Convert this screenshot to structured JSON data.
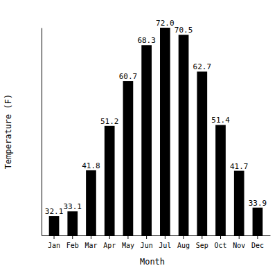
{
  "chart_data": {
    "type": "bar",
    "x_label": "Month",
    "y_label": "Temperature (F)",
    "categories": [
      "Jan",
      "Feb",
      "Mar",
      "Apr",
      "May",
      "Jun",
      "Jul",
      "Aug",
      "Sep",
      "Oct",
      "Nov",
      "Dec"
    ],
    "values": [
      32.1,
      33.1,
      41.8,
      51.2,
      60.7,
      68.3,
      72.0,
      70.5,
      62.7,
      51.4,
      41.7,
      33.9
    ],
    "value_labels": [
      "32.1",
      "33.1",
      "41.8",
      "51.2",
      "60.7",
      "68.3",
      "72.0",
      "70.5",
      "62.7",
      "51.4",
      "41.7",
      "33.9"
    ],
    "color": "#000000",
    "ylim": [
      28,
      72
    ],
    "yticks": [],
    "grid": false,
    "data_labels": true,
    "tick_labels": "x"
  }
}
